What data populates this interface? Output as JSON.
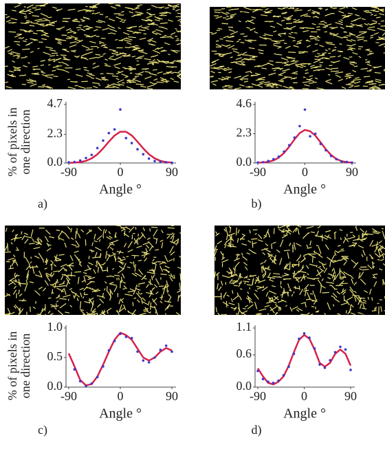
{
  "chart_data": [
    {
      "type": "line",
      "caption": "a)",
      "ylabel": [
        "% of pixels in",
        "one direction"
      ],
      "xlabel": "Angle °",
      "x": [
        -90,
        -80,
        -70,
        -60,
        -50,
        -40,
        -30,
        -20,
        -10,
        0,
        10,
        20,
        30,
        40,
        50,
        60,
        70,
        80,
        90
      ],
      "xlim": [
        -90,
        90
      ],
      "xticks": [
        -90,
        0,
        90
      ],
      "ylim": [
        0,
        4.7
      ],
      "yticks": [
        {
          "value": 0,
          "label": "0.0"
        },
        2.3,
        4.7
      ],
      "series": [
        {
          "kind": "line",
          "color": "#d6204a",
          "values": [
            0.01,
            0.03,
            0.07,
            0.17,
            0.37,
            0.7,
            1.17,
            1.71,
            2.21,
            2.51,
            2.51,
            2.21,
            1.71,
            1.17,
            0.7,
            0.37,
            0.17,
            0.07,
            0.03
          ]
        },
        {
          "kind": "scatter",
          "color": "#3a3ad0",
          "values": [
            0.05,
            0.08,
            0.2,
            0.4,
            0.65,
            1.2,
            1.8,
            2.4,
            2.7,
            4.3,
            2.0,
            1.6,
            1.1,
            0.7,
            0.35,
            0.15,
            0.1,
            0.05,
            0.02
          ]
        }
      ]
    },
    {
      "type": "line",
      "caption": "b)",
      "xlabel": "Angle °",
      "x": [
        -90,
        -80,
        -70,
        -60,
        -50,
        -40,
        -30,
        -20,
        -10,
        0,
        10,
        20,
        30,
        40,
        50,
        60,
        70,
        80,
        90
      ],
      "xlim": [
        -90,
        90
      ],
      "xticks": [
        -90,
        0,
        90
      ],
      "ylim": [
        0,
        4.6
      ],
      "yticks": [
        {
          "value": 0,
          "label": "0.0"
        },
        2.3,
        4.6
      ],
      "series": [
        {
          "kind": "line",
          "color": "#d6204a",
          "values": [
            0.02,
            0.04,
            0.09,
            0.2,
            0.42,
            0.78,
            1.28,
            1.85,
            2.35,
            2.6,
            2.5,
            2.15,
            1.62,
            1.08,
            0.63,
            0.32,
            0.14,
            0.06,
            0.02
          ]
        },
        {
          "kind": "scatter",
          "color": "#3a3ad0",
          "values": [
            0.04,
            0.06,
            0.15,
            0.3,
            0.5,
            0.9,
            1.4,
            2.0,
            2.9,
            4.2,
            2.1,
            2.3,
            1.5,
            1.0,
            0.55,
            0.3,
            0.12,
            0.08,
            0.03
          ]
        }
      ]
    },
    {
      "type": "line",
      "caption": "c)",
      "ylabel": [
        "% of pixels in",
        "one direction"
      ],
      "xlabel": "Angle °",
      "x": [
        -90,
        -80,
        -70,
        -60,
        -50,
        -40,
        -30,
        -20,
        -10,
        0,
        10,
        20,
        30,
        40,
        50,
        60,
        70,
        80,
        90
      ],
      "xlim": [
        -90,
        90
      ],
      "xticks": [
        -90,
        0,
        90
      ],
      "ylim": [
        0,
        1.0
      ],
      "yticks": [
        {
          "value": 0,
          "label": "0.0"
        },
        0.5,
        {
          "value": 1.0,
          "label": "1.0"
        }
      ],
      "series": [
        {
          "kind": "line",
          "color": "#d6204a",
          "values": [
            0.57,
            0.35,
            0.12,
            0.03,
            0.05,
            0.18,
            0.38,
            0.6,
            0.8,
            0.92,
            0.88,
            0.8,
            0.65,
            0.5,
            0.45,
            0.5,
            0.6,
            0.66,
            0.62
          ]
        },
        {
          "kind": "scatter",
          "color": "#3a3ad0",
          "values": [
            null,
            0.3,
            0.1,
            0.02,
            0.06,
            0.17,
            0.35,
            0.62,
            0.78,
            0.9,
            0.85,
            0.83,
            0.6,
            0.45,
            0.42,
            0.5,
            0.63,
            0.7,
            0.6
          ]
        }
      ]
    },
    {
      "type": "line",
      "caption": "d)",
      "xlabel": "Angle °",
      "x": [
        -90,
        -80,
        -70,
        -60,
        -50,
        -40,
        -30,
        -20,
        -10,
        0,
        10,
        20,
        30,
        40,
        50,
        60,
        70,
        80,
        90
      ],
      "xlim": [
        -90,
        90
      ],
      "xticks": [
        -90,
        0,
        90
      ],
      "ylim": [
        0,
        1.1
      ],
      "yticks": [
        {
          "value": 0,
          "label": "0.0"
        },
        0.6,
        1.1
      ],
      "series": [
        {
          "kind": "line",
          "color": "#d6204a",
          "values": [
            0.35,
            0.2,
            0.08,
            0.05,
            0.1,
            0.2,
            0.4,
            0.65,
            0.88,
            0.97,
            0.9,
            0.7,
            0.45,
            0.38,
            0.45,
            0.62,
            0.7,
            0.62,
            0.4
          ]
        },
        {
          "kind": "scatter",
          "color": "#3a3ad0",
          "values": [
            0.3,
            0.15,
            0.1,
            0.08,
            0.12,
            0.22,
            0.38,
            0.62,
            0.9,
            1.0,
            0.92,
            0.72,
            0.42,
            0.36,
            0.5,
            0.65,
            0.75,
            0.7,
            0.32
          ]
        }
      ]
    }
  ]
}
